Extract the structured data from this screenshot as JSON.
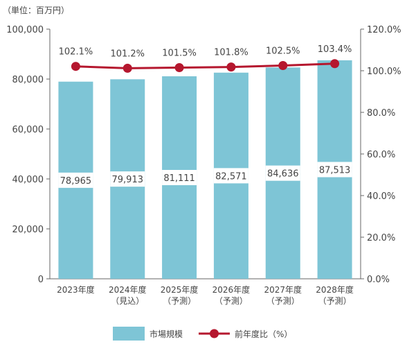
{
  "unit_label": "（単位：百万円）",
  "chart_data": {
    "type": "bar",
    "categories": [
      [
        "2023年度"
      ],
      [
        "2024年度",
        "（見込）"
      ],
      [
        "2025年度",
        "（予測）"
      ],
      [
        "2026年度",
        "（予測）"
      ],
      [
        "2027年度",
        "（予測）"
      ],
      [
        "2028年度",
        "（予測）"
      ]
    ],
    "series": [
      {
        "name": "市場規模",
        "type": "bar",
        "axis": "left",
        "color": "#7EC5D6",
        "values": [
          78965,
          79913,
          81111,
          82571,
          84636,
          87513
        ],
        "labels": [
          "78,965",
          "79,913",
          "81,111",
          "82,571",
          "84,636",
          "87,513"
        ]
      },
      {
        "name": "前年度比（%）",
        "type": "line",
        "axis": "right",
        "color": "#B5172E",
        "values": [
          102.1,
          101.2,
          101.5,
          101.8,
          102.5,
          103.4
        ],
        "labels": [
          "102.1%",
          "101.2%",
          "101.5%",
          "101.8%",
          "102.5%",
          "103.4%"
        ]
      }
    ],
    "y_left": {
      "min": 0,
      "max": 100000,
      "ticks": [
        0,
        20000,
        40000,
        60000,
        80000,
        100000
      ],
      "tick_labels": [
        "0",
        "20,000",
        "40,000",
        "60,000",
        "80,000",
        "100,000"
      ]
    },
    "y_right": {
      "min": 0,
      "max": 120,
      "ticks": [
        0,
        20,
        40,
        60,
        80,
        100,
        120
      ],
      "tick_labels": [
        "0.0%",
        "20.0%",
        "40.0%",
        "60.0%",
        "80.0%",
        "100.0%",
        "120.0%"
      ]
    },
    "grid": false,
    "legend_position": "bottom"
  }
}
